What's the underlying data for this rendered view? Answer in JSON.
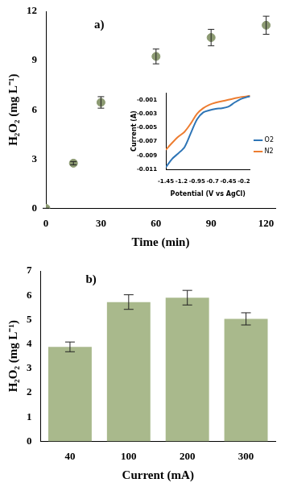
{
  "chart_data": [
    {
      "type": "scatter",
      "annotation": "a)",
      "x_label": "Time (min)",
      "y_label": "H₂O₂ (mg L⁻¹)",
      "x": [
        0,
        15,
        30,
        60,
        90,
        120
      ],
      "values": [
        0,
        2.75,
        6.45,
        9.25,
        10.4,
        11.15
      ],
      "errors": [
        0,
        0.1,
        0.35,
        0.45,
        0.5,
        0.55
      ],
      "color": "#8c9a72",
      "marker": "circle",
      "xlim": [
        0,
        125
      ],
      "xticks": [
        0,
        30,
        60,
        90,
        120
      ],
      "ylim": [
        0,
        12
      ],
      "yticks": [
        0,
        3,
        6,
        9,
        12
      ],
      "grid": false
    },
    {
      "type": "line",
      "x_label": "Potential (V vs AgCl)",
      "y_label": "Current (A)",
      "x": [
        -1.45,
        -1.35,
        -1.25,
        -1.15,
        -1.05,
        -0.95,
        -0.85,
        -0.75,
        -0.65,
        -0.55,
        -0.45,
        -0.35,
        -0.25,
        -0.15,
        -0.1
      ],
      "series": [
        {
          "name": "O2",
          "color": "#2e75b6",
          "values": [
            -0.0107,
            -0.0095,
            -0.0087,
            -0.0078,
            -0.0058,
            -0.0038,
            -0.0028,
            -0.0025,
            -0.0023,
            -0.0022,
            -0.002,
            -0.0014,
            -0.0009,
            -0.0006,
            -0.0005
          ]
        },
        {
          "name": "N2",
          "color": "#ed7d31",
          "values": [
            -0.0082,
            -0.0072,
            -0.0063,
            -0.0056,
            -0.0044,
            -0.003,
            -0.0022,
            -0.0017,
            -0.0014,
            -0.0012,
            -0.001,
            -0.0008,
            -0.0006,
            -0.0005,
            -0.0004
          ]
        }
      ],
      "xlim": [
        -1.45,
        -0.1
      ],
      "xticks": [
        -1.45,
        -1.2,
        -0.95,
        -0.7,
        -0.45,
        -0.2
      ],
      "ylim": [
        -0.011,
        0
      ],
      "yticks": [
        -0.011,
        -0.009,
        -0.007,
        -0.005,
        -0.003,
        -0.001
      ],
      "legend": "right",
      "grid": false
    },
    {
      "type": "bar",
      "annotation": "b)",
      "x_label": "Current (mA)",
      "y_label": "H₂O₂ (mg L⁻¹)",
      "categories": [
        "40",
        "100",
        "200",
        "300"
      ],
      "values": [
        3.88,
        5.72,
        5.9,
        5.03
      ],
      "errors": [
        0.2,
        0.3,
        0.3,
        0.25
      ],
      "color": "#a9b98c",
      "ylim": [
        0,
        7
      ],
      "yticks": [
        0,
        1,
        2,
        3,
        4,
        5,
        6,
        7
      ],
      "grid": false
    }
  ]
}
